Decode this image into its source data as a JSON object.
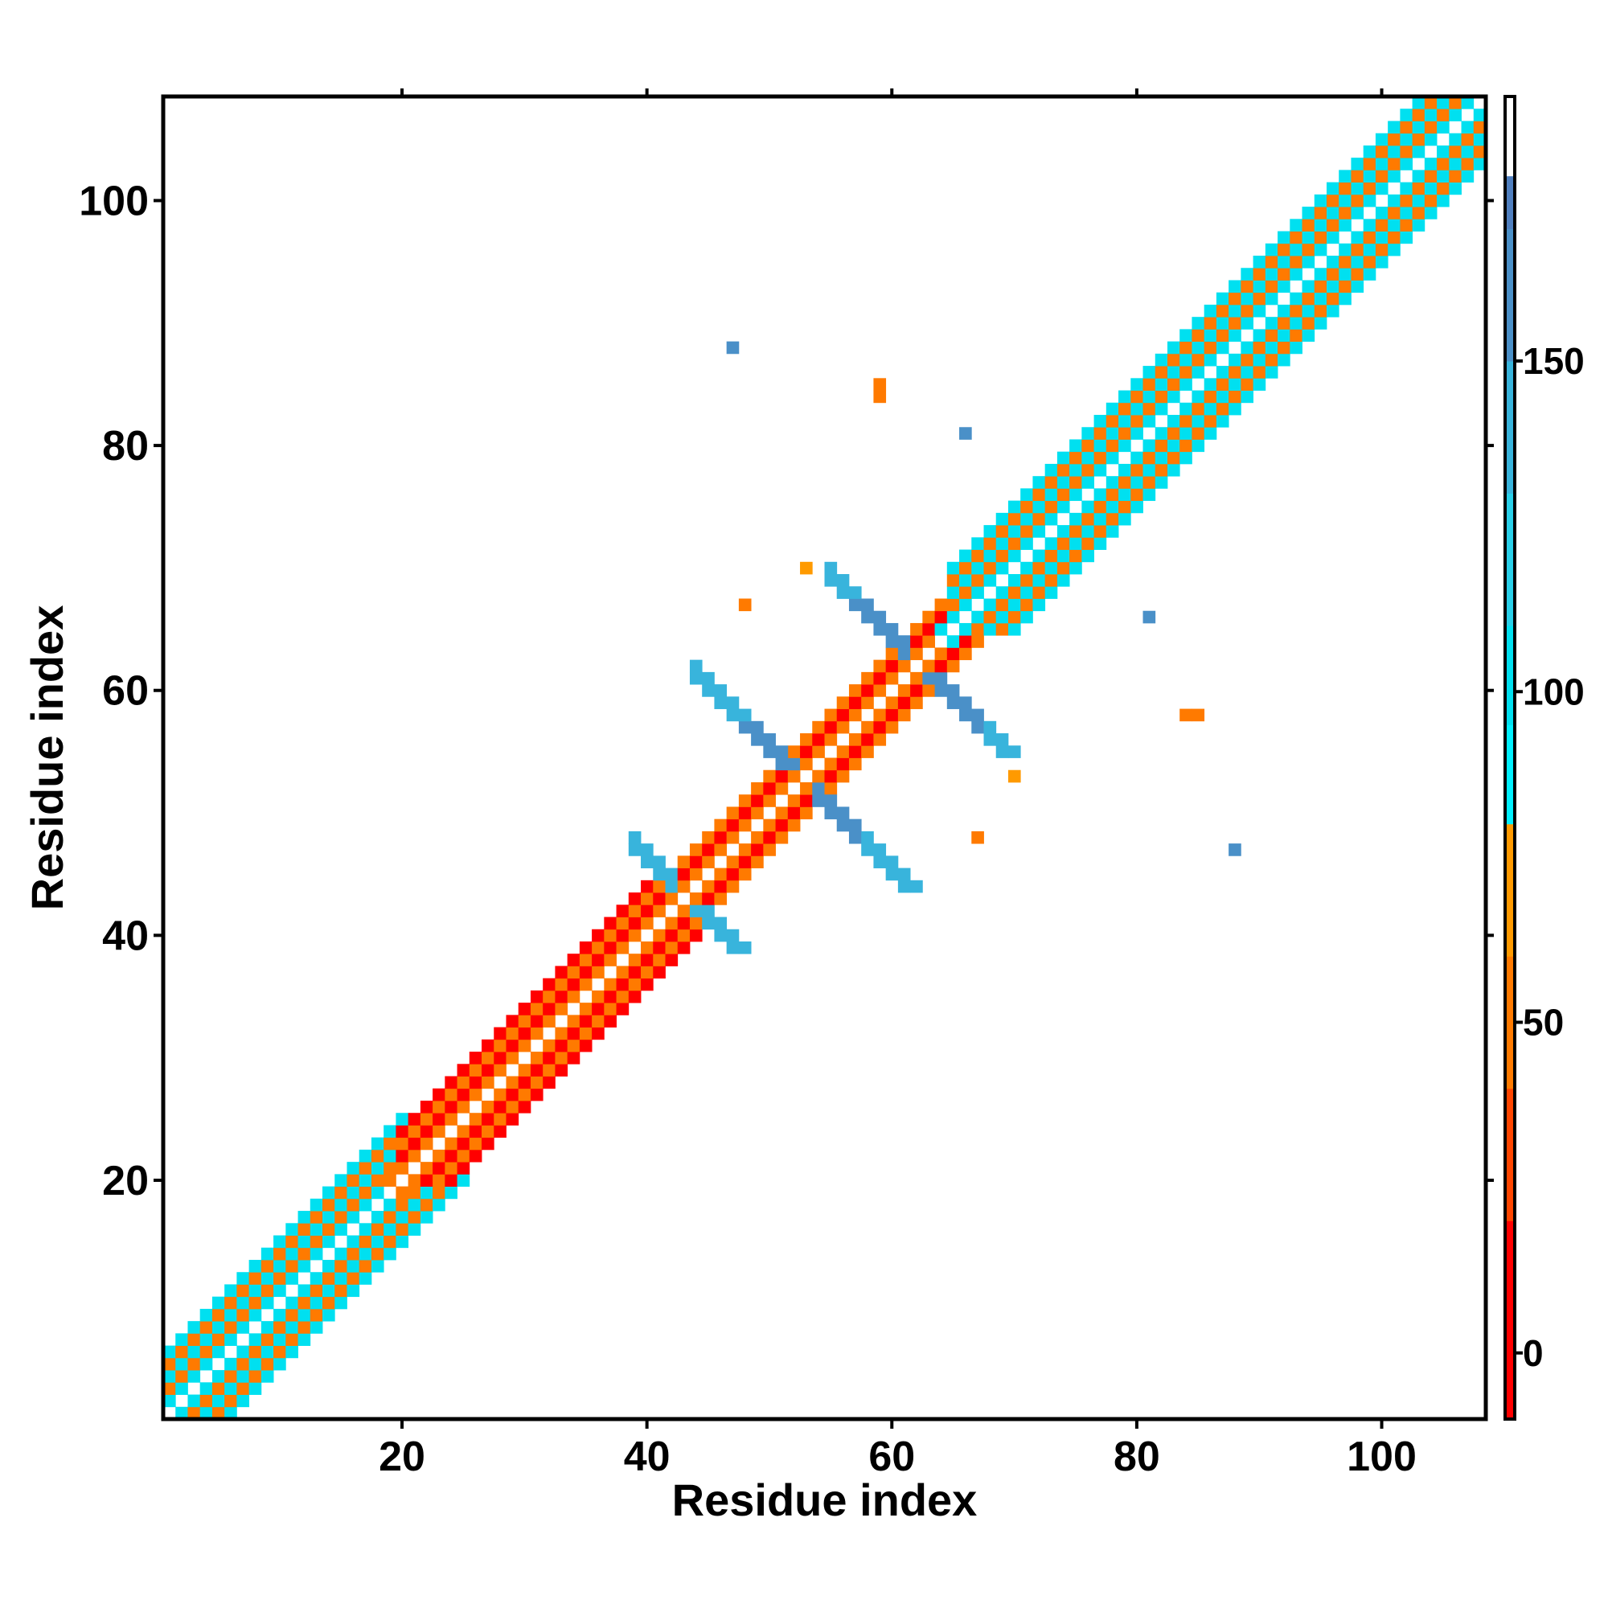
{
  "chart_data": {
    "type": "heatmap",
    "title": "",
    "xlabel": "Residue index",
    "ylabel": "Residue index",
    "xlim": [
      1,
      108
    ],
    "ylim": [
      1,
      108
    ],
    "x_ticks": [
      20,
      40,
      60,
      80,
      100
    ],
    "y_ticks": [
      20,
      40,
      60,
      80,
      100
    ],
    "grid": false,
    "colorbar": {
      "range": [
        -10,
        190
      ],
      "ticks": [
        0,
        50,
        100,
        150
      ],
      "bands": [
        {
          "from": -10,
          "to": 20,
          "color": "#ff0000"
        },
        {
          "from": 20,
          "to": 40,
          "color": "#ff4500"
        },
        {
          "from": 40,
          "to": 60,
          "color": "#ff7a00"
        },
        {
          "from": 60,
          "to": 80,
          "color": "#ff9a00"
        },
        {
          "from": 80,
          "to": 95,
          "color": "#00f0ff"
        },
        {
          "from": 95,
          "to": 110,
          "color": "#00e0f0"
        },
        {
          "from": 110,
          "to": 130,
          "color": "#28cfe8"
        },
        {
          "from": 130,
          "to": 150,
          "color": "#38b4dc"
        },
        {
          "from": 150,
          "to": 170,
          "color": "#4a90c8"
        },
        {
          "from": 170,
          "to": 178,
          "color": "#4f7fbf"
        },
        {
          "from": 178,
          "to": 190,
          "color": "#ffffff"
        }
      ]
    },
    "regions": [
      {
        "name": "diagonal-segment-1",
        "residues": [
          1,
          20
        ],
        "band": [
          -1,
          5
        ],
        "values_near": [
          45,
          105
        ],
        "checker": true
      },
      {
        "name": "diagonal-segment-2",
        "residues": [
          20,
          40
        ],
        "band": [
          -1,
          4
        ],
        "values_near": [
          10,
          50
        ],
        "checker": true
      },
      {
        "name": "diagonal-segment-3",
        "residues": [
          40,
          52
        ],
        "band": [
          -1,
          3
        ],
        "values_near": [
          5,
          40
        ],
        "checker": true
      },
      {
        "name": "diagonal-segment-4",
        "residues": [
          52,
          65
        ],
        "band": [
          -1,
          3
        ],
        "values_near": [
          0,
          40
        ],
        "checker": true
      },
      {
        "name": "diagonal-segment-5",
        "residues": [
          65,
          108
        ],
        "band": [
          -1,
          5
        ],
        "values_near": [
          40,
          100
        ],
        "checker": true
      },
      {
        "name": "antiparallel-contact-a",
        "center": [
          43,
          43
        ],
        "arm_length": 4,
        "value": 140
      },
      {
        "name": "antiparallel-contact-b",
        "center": [
          52,
          53
        ],
        "arm_length": 8,
        "value": 155
      },
      {
        "name": "antiparallel-contact-c",
        "center": [
          62,
          62
        ],
        "arm_length": 7,
        "value": 155
      }
    ],
    "isolated_points": [
      {
        "x": 47,
        "y": 88,
        "value": 160
      },
      {
        "x": 59,
        "y": 85,
        "value": 50
      },
      {
        "x": 59,
        "y": 84,
        "value": 50
      },
      {
        "x": 66,
        "y": 81,
        "value": 160
      },
      {
        "x": 48,
        "y": 67,
        "value": 50
      },
      {
        "x": 81,
        "y": 66,
        "value": 160
      },
      {
        "x": 84,
        "y": 58,
        "value": 45
      },
      {
        "x": 85,
        "y": 58,
        "value": 45
      },
      {
        "x": 67,
        "y": 48,
        "value": 50
      },
      {
        "x": 88,
        "y": 47,
        "value": 160
      },
      {
        "x": 53,
        "y": 70,
        "value": 70
      },
      {
        "x": 70,
        "y": 53,
        "value": 70
      }
    ]
  }
}
